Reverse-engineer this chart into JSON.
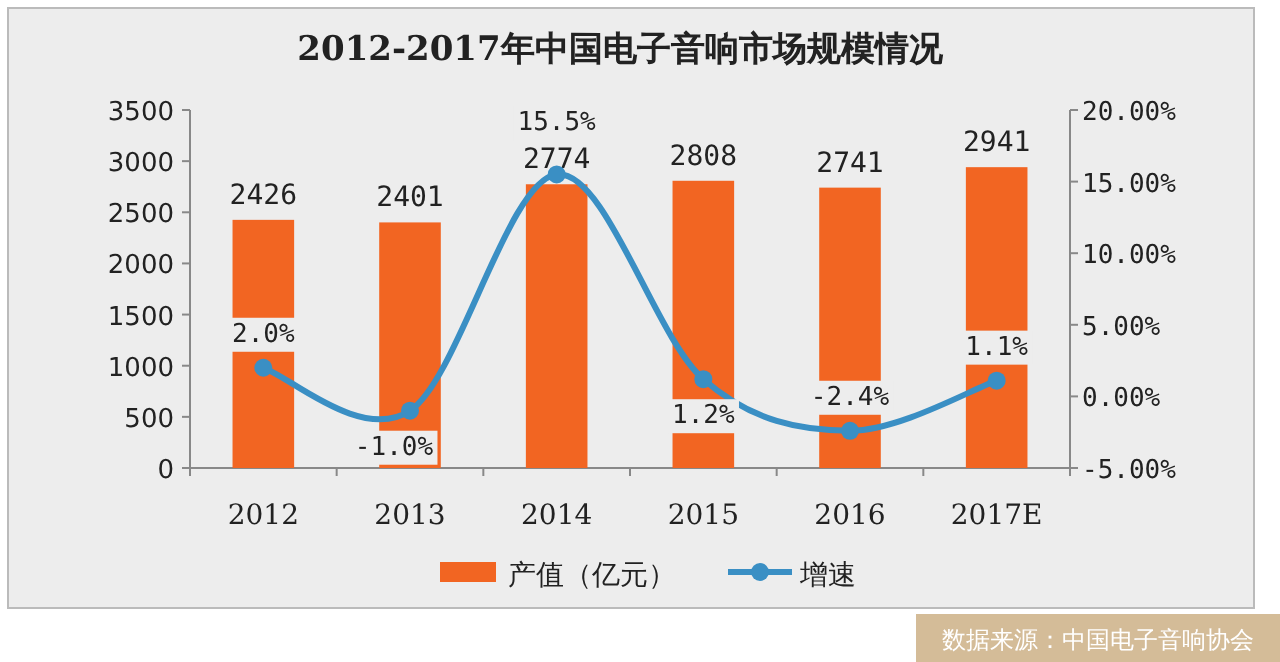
{
  "chart_data": {
    "type": "bar",
    "title": "2012-2017年中国电子音响市场规模情况",
    "categories": [
      "2012",
      "2013",
      "2014",
      "2015",
      "2016",
      "2017E"
    ],
    "series": [
      {
        "name": "产值（亿元）",
        "color": "#f26522",
        "values": [
          2426,
          2401,
          2774,
          2808,
          2741,
          2941
        ],
        "value_labels": [
          "2426",
          "2401",
          "2774",
          "2808",
          "2741",
          "2941"
        ]
      },
      {
        "name": "增速",
        "type": "line",
        "axis": "y2",
        "color": "#3a8fc4",
        "marker": "circle",
        "values": [
          2.0,
          -1.0,
          15.5,
          1.2,
          -2.4,
          1.1
        ],
        "value_labels": [
          "2.0%",
          "-1.0%",
          "15.5%",
          "1.2%",
          "-2.4%",
          "1.1%"
        ]
      }
    ],
    "ylim": [
      0,
      3500
    ],
    "yticks": [
      0,
      500,
      1000,
      1500,
      2000,
      2500,
      3000,
      3500
    ],
    "y2lim": [
      -5,
      20
    ],
    "y2ticks": [
      {
        "value": -5,
        "label": "-5.00%"
      },
      {
        "value": 0,
        "label": "0.00%"
      },
      {
        "value": 5,
        "label": "5.00%"
      },
      {
        "value": 10,
        "label": "10.00%"
      },
      {
        "value": 15,
        "label": "15.00%"
      },
      {
        "value": 20,
        "label": "20.00%"
      }
    ],
    "legend": "bottom",
    "annotations": [
      "数据来源：中国电子音响协会"
    ]
  }
}
